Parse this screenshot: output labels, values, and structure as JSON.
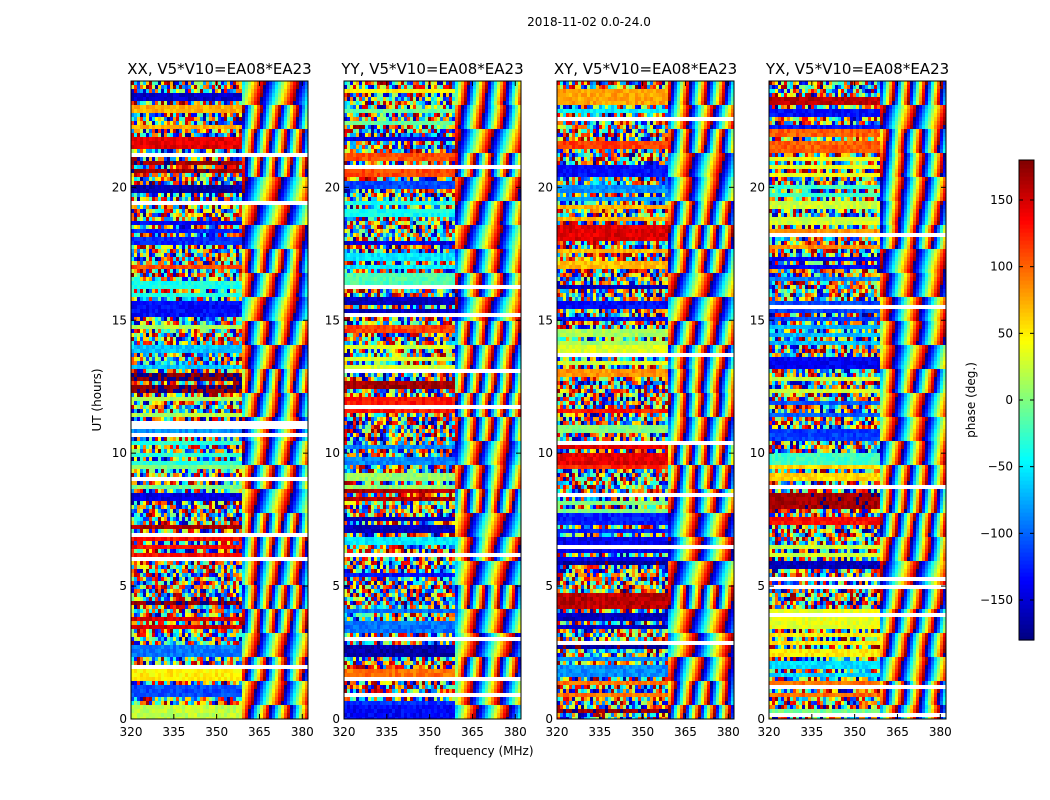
{
  "figure": {
    "suptitle": "2018-11-02 0.0-24.0",
    "xlabel": "frequency (MHz)",
    "ylabel": "UT (hours)"
  },
  "chart_data": {
    "type": "heatmap",
    "xlim": [
      320,
      382
    ],
    "ylim": [
      0,
      24
    ],
    "xticks": [
      320,
      335,
      350,
      365,
      380
    ],
    "yticks": [
      0,
      5,
      10,
      15,
      20
    ],
    "panels": [
      {
        "id": "xx",
        "title": "XX, V5*V10=EA08*EA23"
      },
      {
        "id": "yy",
        "title": "YY, V5*V10=EA08*EA23"
      },
      {
        "id": "xy",
        "title": "XY, V5*V10=EA08*EA23"
      },
      {
        "id": "yx",
        "title": "YX, V5*V10=EA08*EA23"
      }
    ],
    "colorbar": {
      "label": "phase (deg.)",
      "range": [
        -180,
        180
      ],
      "ticks": [
        -150,
        -100,
        -50,
        0,
        50,
        100,
        150
      ],
      "ticklabels": [
        "−150",
        "−100",
        "−50",
        "0",
        "50",
        "100",
        "150"
      ],
      "colormap": "jet"
    }
  }
}
